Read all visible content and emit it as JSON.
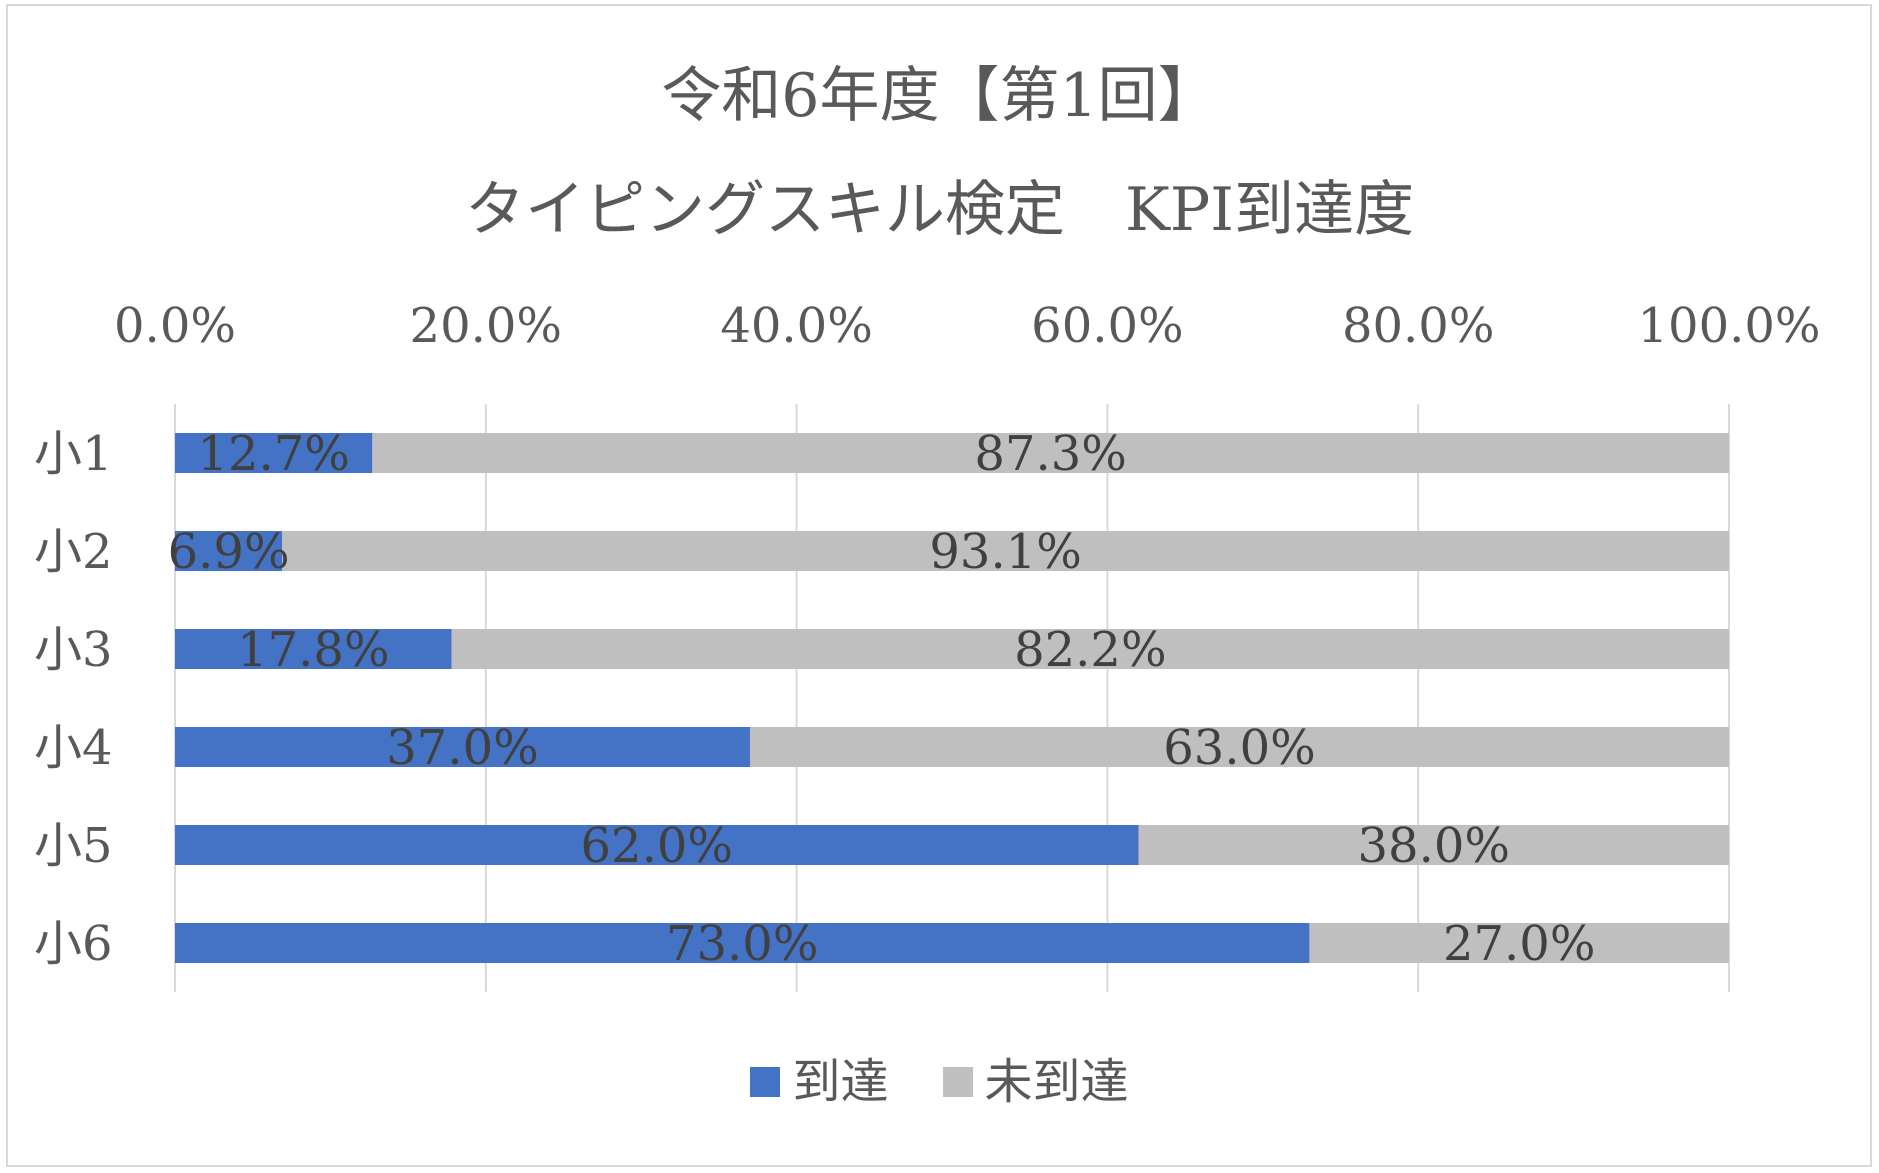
{
  "chart_data": {
    "type": "bar",
    "orientation": "horizontal",
    "stacked": "percent",
    "title": "令和6年度【第1回】",
    "subtitle": "タイピングスキル検定　KPI到達度",
    "categories": [
      "小1",
      "小2",
      "小3",
      "小4",
      "小5",
      "小6"
    ],
    "series": [
      {
        "name": "到達",
        "color": "#4472c4",
        "values": [
          12.7,
          6.9,
          17.8,
          37.0,
          62.0,
          73.0
        ],
        "labels": [
          "12.7%",
          "6.9%",
          "17.8%",
          "37.0%",
          "62.0%",
          "73.0%"
        ]
      },
      {
        "name": "未到達",
        "color": "#bfbfbf",
        "values": [
          87.3,
          93.1,
          82.2,
          63.0,
          38.0,
          27.0
        ],
        "labels": [
          "87.3%",
          "93.1%",
          "82.2%",
          "63.0%",
          "38.0%",
          "27.0%"
        ]
      }
    ],
    "xlim": [
      0,
      100
    ],
    "x_ticks": [
      0,
      20,
      40,
      60,
      80,
      100
    ],
    "x_tick_labels": [
      "0.0%",
      "20.0%",
      "40.0%",
      "60.0%",
      "80.0%",
      "100.0%"
    ],
    "x_axis_position": "top",
    "grid": true,
    "legend_position": "bottom",
    "data_labels": "center"
  }
}
